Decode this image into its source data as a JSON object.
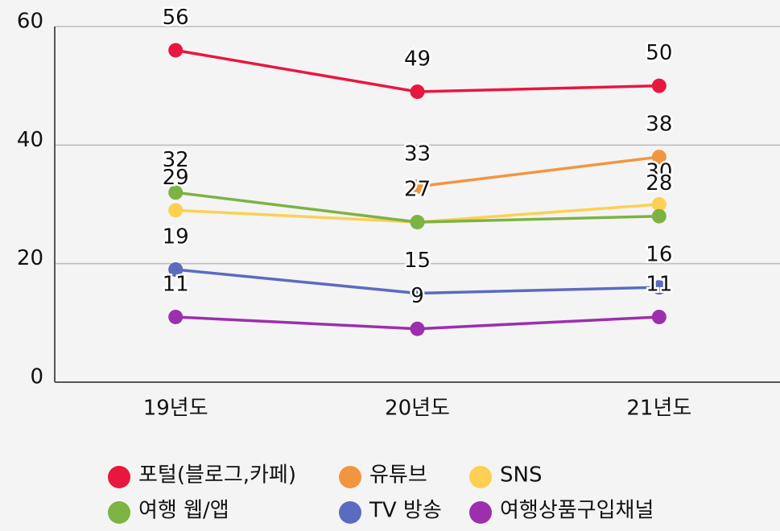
{
  "chart_data": {
    "type": "line",
    "categories": [
      "19년도",
      "20년도",
      "21년도"
    ],
    "series": [
      {
        "name": "포털(블로그,카페)",
        "color": "#e8173f",
        "values": [
          56,
          49,
          50
        ]
      },
      {
        "name": "유튜브",
        "color": "#f29540",
        "values": [
          null,
          33,
          38
        ]
      },
      {
        "name": "SNS",
        "color": "#fdd053",
        "values": [
          29,
          27,
          30
        ]
      },
      {
        "name": "여행 웹/앱",
        "color": "#7cb342",
        "values": [
          32,
          27,
          28
        ]
      },
      {
        "name": "TV 방송",
        "color": "#5b6bc0",
        "values": [
          19,
          15,
          16
        ]
      },
      {
        "name": "여행상품구입채널",
        "color": "#9c2fae",
        "values": [
          11,
          9,
          11
        ]
      }
    ],
    "ylim": [
      0,
      60
    ],
    "yticks": [
      0,
      20,
      40,
      60
    ],
    "grid": true,
    "legend": "bottom"
  }
}
